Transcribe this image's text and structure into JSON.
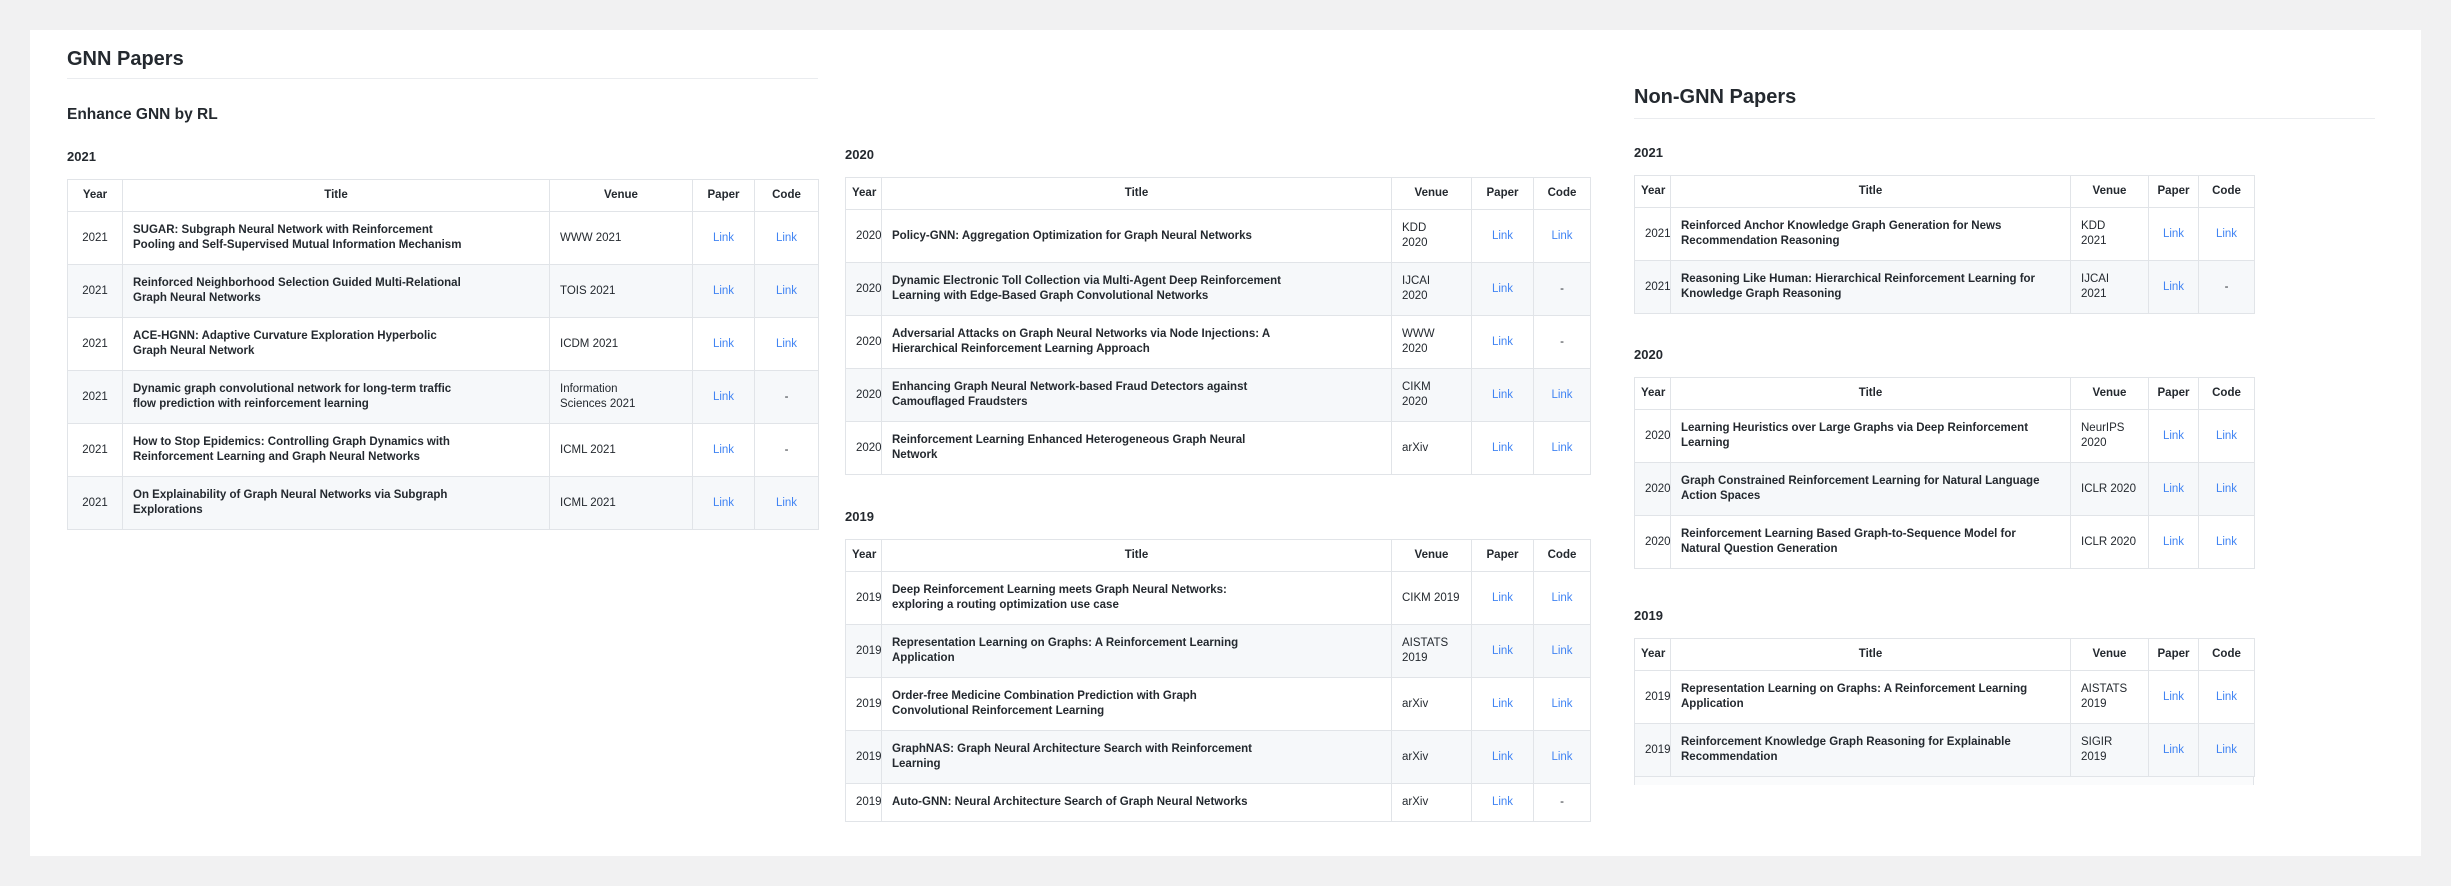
{
  "table_headers": [
    "Year",
    "Title",
    "Venue",
    "Paper",
    "Code"
  ],
  "link_label": "Link",
  "no_link_label": "-",
  "colors": {
    "page_background": "#f1f1f2",
    "card_background": "#ffffff",
    "text": "#24292f",
    "table_border": "#e1e4e8",
    "alt_row_background": "#f6f8fa",
    "link_blue": "#4184f3",
    "heading_rule": "#eaecef"
  },
  "columns": [
    {
      "heading": "GNN Papers",
      "subheading": "Enhance GNN by RL",
      "sections": [
        {
          "year_label": "2021",
          "rows": [
            {
              "year": "2021",
              "title": "SUGAR: Subgraph Neural Network with Reinforcement\nPooling and Self-Supervised Mutual Information Mechanism",
              "venue": "WWW 2021",
              "paper": "Link",
              "code": "Link"
            },
            {
              "year": "2021",
              "title": "Reinforced Neighborhood Selection Guided Multi-Relational\nGraph Neural Networks",
              "venue": "TOIS 2021",
              "paper": "Link",
              "code": "Link"
            },
            {
              "year": "2021",
              "title": "ACE-HGNN: Adaptive Curvature Exploration Hyperbolic\nGraph Neural Network",
              "venue": "ICDM 2021",
              "paper": "Link",
              "code": "Link"
            },
            {
              "year": "2021",
              "title": "Dynamic graph convolutional network for long-term traffic\nflow prediction with reinforcement learning",
              "venue": "Information\nSciences 2021",
              "paper": "Link",
              "code": "-"
            },
            {
              "year": "2021",
              "title": "How to Stop Epidemics: Controlling Graph Dynamics with\nReinforcement Learning and Graph Neural Networks",
              "venue": "ICML 2021",
              "paper": "Link",
              "code": "-"
            },
            {
              "year": "2021",
              "title": "On Explainability of Graph Neural Networks via Subgraph\nExplorations",
              "venue": "ICML 2021",
              "paper": "Link",
              "code": "Link"
            }
          ]
        }
      ]
    },
    {
      "heading": null,
      "subheading": null,
      "sections": [
        {
          "year_label": "2020",
          "rows": [
            {
              "year": "2020",
              "title": "Policy-GNN: Aggregation Optimization for Graph Neural Networks",
              "venue": "KDD\n2020",
              "paper": "Link",
              "code": "Link"
            },
            {
              "year": "2020",
              "title": "Dynamic Electronic Toll Collection via Multi-Agent Deep Reinforcement\nLearning with Edge-Based Graph Convolutional Networks",
              "venue": "IJCAI\n2020",
              "paper": "Link",
              "code": "-"
            },
            {
              "year": "2020",
              "title": "Adversarial Attacks on Graph Neural Networks via Node Injections: A\nHierarchical Reinforcement Learning Approach",
              "venue": "WWW\n2020",
              "paper": "Link",
              "code": "-"
            },
            {
              "year": "2020",
              "title": "Enhancing Graph Neural Network-based Fraud Detectors against\nCamouflaged Fraudsters",
              "venue": "CIKM\n2020",
              "paper": "Link",
              "code": "Link"
            },
            {
              "year": "2020",
              "title": "Reinforcement Learning Enhanced Heterogeneous Graph Neural\nNetwork",
              "venue": "arXiv",
              "paper": "Link",
              "code": "Link"
            }
          ]
        },
        {
          "year_label": "2019",
          "rows": [
            {
              "year": "2019",
              "title": "Deep Reinforcement Learning meets Graph Neural Networks:\nexploring a routing optimization use case",
              "venue": "CIKM 2019",
              "paper": "Link",
              "code": "Link"
            },
            {
              "year": "2019",
              "title": "Representation Learning on Graphs: A Reinforcement Learning\nApplication",
              "venue": "AISTATS\n2019",
              "paper": "Link",
              "code": "Link"
            },
            {
              "year": "2019",
              "title": "Order-free Medicine Combination Prediction with Graph\nConvolutional Reinforcement Learning",
              "venue": "arXiv",
              "paper": "Link",
              "code": "Link"
            },
            {
              "year": "2019",
              "title": "GraphNAS: Graph Neural Architecture Search with Reinforcement\nLearning",
              "venue": "arXiv",
              "paper": "Link",
              "code": "Link"
            },
            {
              "year": "2019",
              "title": "Auto-GNN: Neural Architecture Search of Graph Neural Networks",
              "venue": "arXiv",
              "paper": "Link",
              "code": "-"
            }
          ]
        }
      ]
    },
    {
      "heading": "Non-GNN Papers",
      "subheading": null,
      "sections": [
        {
          "year_label": "2021",
          "rows": [
            {
              "year": "2021",
              "title": "Reinforced Anchor Knowledge Graph Generation for News\nRecommendation Reasoning",
              "venue": "KDD\n2021",
              "paper": "Link",
              "code": "Link"
            },
            {
              "year": "2021",
              "title": "Reasoning Like Human: Hierarchical Reinforcement Learning for\nKnowledge Graph Reasoning",
              "venue": "IJCAI\n2021",
              "paper": "Link",
              "code": "-"
            }
          ]
        },
        {
          "year_label": "2020",
          "rows": [
            {
              "year": "2020",
              "title": "Learning Heuristics over Large Graphs via Deep Reinforcement\nLearning",
              "venue": "NeurIPS\n2020",
              "paper": "Link",
              "code": "Link"
            },
            {
              "year": "2020",
              "title": "Graph Constrained Reinforcement Learning for Natural Language\nAction Spaces",
              "venue": "ICLR 2020",
              "paper": "Link",
              "code": "Link"
            },
            {
              "year": "2020",
              "title": "Reinforcement Learning Based Graph-to-Sequence Model for\nNatural Question Generation",
              "venue": "ICLR 2020",
              "paper": "Link",
              "code": "Link"
            }
          ]
        },
        {
          "year_label": "2019",
          "clipped_next_row": true,
          "rows": [
            {
              "year": "2019",
              "title": "Representation Learning on Graphs: A Reinforcement Learning\nApplication",
              "venue": "AISTATS\n2019",
              "paper": "Link",
              "code": "Link"
            },
            {
              "year": "2019",
              "title": "Reinforcement Knowledge Graph Reasoning for Explainable\nRecommendation",
              "venue": "SIGIR 2019",
              "paper": "Link",
              "code": "Link"
            }
          ]
        }
      ]
    }
  ]
}
